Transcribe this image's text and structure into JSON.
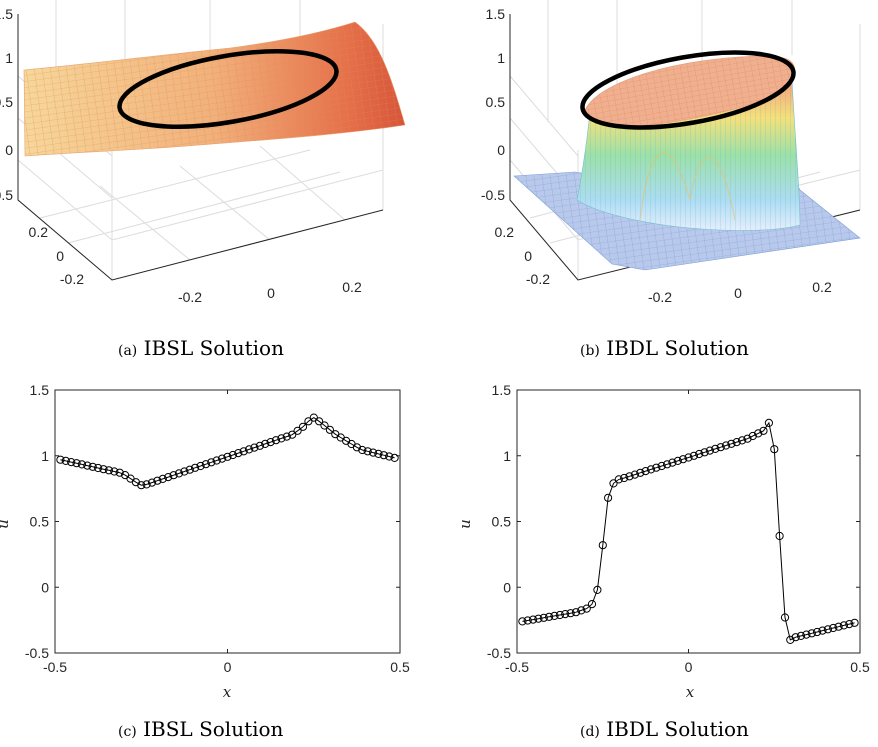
{
  "panels": [
    {
      "id": "a",
      "caption_tag": "(a)",
      "caption_text": "IBSL Solution",
      "type": "surface3d",
      "z_ticks": [
        "1.5",
        "1",
        "0.5",
        "0",
        "-0.5"
      ],
      "y_ticks": [
        "0.2",
        "0",
        "-0.2"
      ],
      "x_ticks": [
        "-0.2",
        "0",
        "0.2"
      ],
      "surface_colormap": "autumn-like (orange to red)",
      "curve_color": "#000000"
    },
    {
      "id": "b",
      "caption_tag": "(b)",
      "caption_text": "IBDL Solution",
      "type": "surface3d",
      "z_ticks": [
        "1.5",
        "1",
        "0.5",
        "0",
        "-0.5"
      ],
      "y_ticks": [
        "0.2",
        "0",
        "-0.2"
      ],
      "x_ticks": [
        "-0.2",
        "0",
        "0.2"
      ],
      "surface_colormap": "parula/jet-like (blue to red)",
      "curve_color": "#000000"
    },
    {
      "id": "c",
      "caption_tag": "(c)",
      "caption_text": "IBSL Solution",
      "type": "line"
    },
    {
      "id": "d",
      "caption_tag": "(d)",
      "caption_text": "IBDL Solution",
      "type": "line"
    }
  ],
  "chart_data": [
    {
      "type": "line",
      "panel": "c",
      "xlabel": "x",
      "ylabel": "u",
      "xlim": [
        -0.5,
        0.5
      ],
      "ylim": [
        -0.5,
        1.5
      ],
      "x_ticks": [
        "-0.5",
        "0",
        "0.5"
      ],
      "y_ticks": [
        "1.5",
        "1",
        "0.5",
        "0",
        "-0.5"
      ],
      "series": [
        {
          "marker": "open-circle",
          "color": "#000000",
          "points": [
            [
              -0.4844,
              0.97
            ],
            [
              -0.4688,
              0.961
            ],
            [
              -0.4531,
              0.952
            ],
            [
              -0.4375,
              0.943
            ],
            [
              -0.4219,
              0.934
            ],
            [
              -0.4063,
              0.925
            ],
            [
              -0.3906,
              0.916
            ],
            [
              -0.375,
              0.907
            ],
            [
              -0.3594,
              0.898
            ],
            [
              -0.3438,
              0.889
            ],
            [
              -0.3281,
              0.88
            ],
            [
              -0.3125,
              0.871
            ],
            [
              -0.2969,
              0.853
            ],
            [
              -0.2813,
              0.826
            ],
            [
              -0.2656,
              0.799
            ],
            [
              -0.25,
              0.776
            ],
            [
              -0.2344,
              0.782
            ],
            [
              -0.2188,
              0.796
            ],
            [
              -0.2031,
              0.81
            ],
            [
              -0.1875,
              0.824
            ],
            [
              -0.1719,
              0.838
            ],
            [
              -0.1563,
              0.852
            ],
            [
              -0.1406,
              0.866
            ],
            [
              -0.125,
              0.88
            ],
            [
              -0.1094,
              0.894
            ],
            [
              -0.0938,
              0.908
            ],
            [
              -0.0781,
              0.922
            ],
            [
              -0.0625,
              0.936
            ],
            [
              -0.0469,
              0.95
            ],
            [
              -0.0313,
              0.964
            ],
            [
              -0.0156,
              0.978
            ],
            [
              0.0,
              0.992
            ],
            [
              0.0156,
              1.006
            ],
            [
              0.0313,
              1.02
            ],
            [
              0.0469,
              1.034
            ],
            [
              0.0625,
              1.048
            ],
            [
              0.0781,
              1.062
            ],
            [
              0.0938,
              1.076
            ],
            [
              0.1094,
              1.09
            ],
            [
              0.125,
              1.104
            ],
            [
              0.1406,
              1.118
            ],
            [
              0.1563,
              1.132
            ],
            [
              0.1719,
              1.146
            ],
            [
              0.1875,
              1.16
            ],
            [
              0.2031,
              1.19
            ],
            [
              0.2188,
              1.22
            ],
            [
              0.2344,
              1.262
            ],
            [
              0.25,
              1.29
            ],
            [
              0.2656,
              1.262
            ],
            [
              0.2813,
              1.23
            ],
            [
              0.2969,
              1.197
            ],
            [
              0.3125,
              1.164
            ],
            [
              0.3281,
              1.139
            ],
            [
              0.3438,
              1.114
            ],
            [
              0.3594,
              1.089
            ],
            [
              0.375,
              1.064
            ],
            [
              0.3906,
              1.044
            ],
            [
              0.4063,
              1.034
            ],
            [
              0.4219,
              1.024
            ],
            [
              0.4375,
              1.014
            ],
            [
              0.4531,
              1.004
            ],
            [
              0.4688,
              0.994
            ],
            [
              0.4844,
              0.984
            ]
          ]
        }
      ]
    },
    {
      "type": "line",
      "panel": "d",
      "xlabel": "x",
      "ylabel": "u",
      "xlim": [
        -0.5,
        0.5
      ],
      "ylim": [
        -0.5,
        1.5
      ],
      "x_ticks": [
        "-0.5",
        "0",
        "0.5"
      ],
      "y_ticks": [
        "1.5",
        "1",
        "0.5",
        "0",
        "-0.5"
      ],
      "series": [
        {
          "marker": "open-circle",
          "color": "#000000",
          "points": [
            [
              -0.4844,
              -0.26
            ],
            [
              -0.4688,
              -0.253
            ],
            [
              -0.4531,
              -0.246
            ],
            [
              -0.4375,
              -0.239
            ],
            [
              -0.4219,
              -0.232
            ],
            [
              -0.4063,
              -0.225
            ],
            [
              -0.3906,
              -0.218
            ],
            [
              -0.375,
              -0.211
            ],
            [
              -0.3594,
              -0.204
            ],
            [
              -0.3438,
              -0.197
            ],
            [
              -0.3281,
              -0.19
            ],
            [
              -0.3125,
              -0.176
            ],
            [
              -0.2969,
              -0.162
            ],
            [
              -0.2813,
              -0.128
            ],
            [
              -0.2656,
              -0.02
            ],
            [
              -0.25,
              0.32
            ],
            [
              -0.2344,
              0.68
            ],
            [
              -0.2188,
              0.79
            ],
            [
              -0.2031,
              0.82
            ],
            [
              -0.1875,
              0.831
            ],
            [
              -0.1719,
              0.844
            ],
            [
              -0.1563,
              0.857
            ],
            [
              -0.1406,
              0.87
            ],
            [
              -0.125,
              0.883
            ],
            [
              -0.1094,
              0.896
            ],
            [
              -0.0938,
              0.909
            ],
            [
              -0.0781,
              0.922
            ],
            [
              -0.0625,
              0.935
            ],
            [
              -0.0469,
              0.948
            ],
            [
              -0.0313,
              0.961
            ],
            [
              -0.0156,
              0.974
            ],
            [
              0.0,
              0.987
            ],
            [
              0.0156,
              1.0
            ],
            [
              0.0313,
              1.013
            ],
            [
              0.0469,
              1.026
            ],
            [
              0.0625,
              1.039
            ],
            [
              0.0781,
              1.052
            ],
            [
              0.0938,
              1.065
            ],
            [
              0.1094,
              1.078
            ],
            [
              0.125,
              1.091
            ],
            [
              0.1406,
              1.104
            ],
            [
              0.1563,
              1.117
            ],
            [
              0.1719,
              1.13
            ],
            [
              0.1875,
              1.15
            ],
            [
              0.2031,
              1.17
            ],
            [
              0.2188,
              1.19
            ],
            [
              0.2344,
              1.25
            ],
            [
              0.25,
              1.05
            ],
            [
              0.2656,
              0.39
            ],
            [
              0.2813,
              -0.23
            ],
            [
              0.2969,
              -0.4
            ],
            [
              0.3125,
              -0.38
            ],
            [
              0.3281,
              -0.37
            ],
            [
              0.3438,
              -0.36
            ],
            [
              0.3594,
              -0.35
            ],
            [
              0.375,
              -0.34
            ],
            [
              0.3906,
              -0.33
            ],
            [
              0.4063,
              -0.32
            ],
            [
              0.4219,
              -0.31
            ],
            [
              0.4375,
              -0.3
            ],
            [
              0.4531,
              -0.29
            ],
            [
              0.4688,
              -0.28
            ],
            [
              0.4844,
              -0.27
            ]
          ]
        }
      ]
    }
  ]
}
